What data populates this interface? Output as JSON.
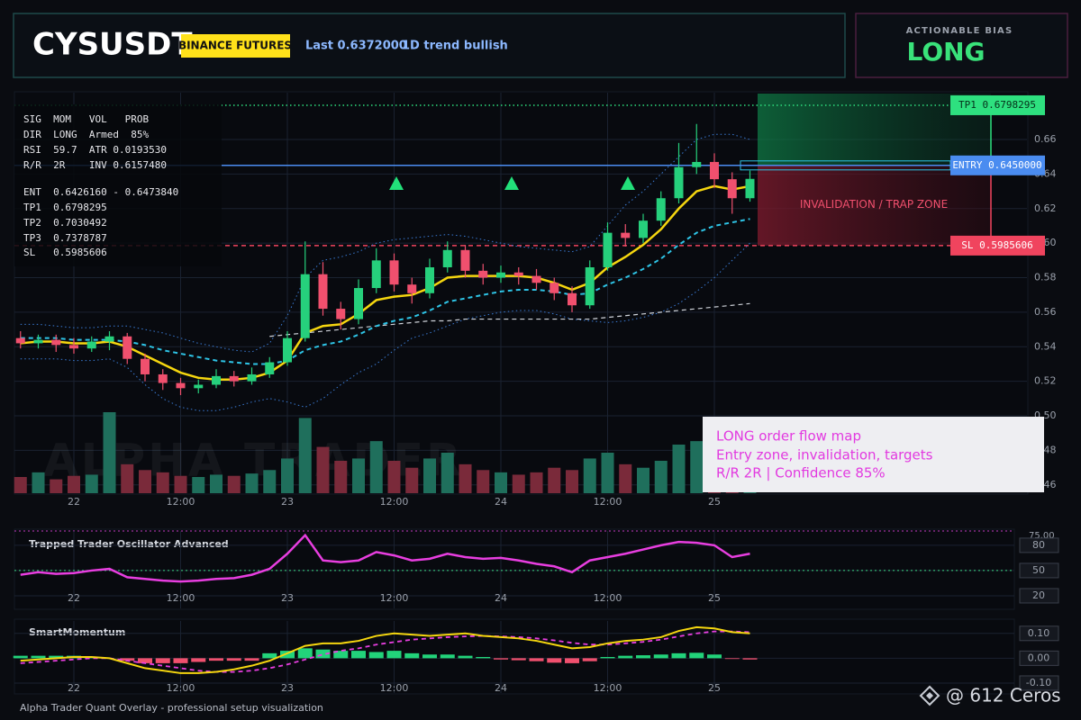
{
  "header": {
    "symbol": "CYSUSDT",
    "exchange": "BINANCE FUTURES",
    "last": "Last 0.6372000",
    "trend": "1D trend bullish"
  },
  "bias": {
    "label": "ACTIONABLE BIAS",
    "value": "LONG"
  },
  "info_table": [
    "SIG  MOM   VOL   PROB",
    "DIR  LONG  Armed  85%",
    "RSI  59.7  ATR 0.0193530",
    "R/R  2R    INV 0.6157480",
    "ENT  0.6426160 - 0.6473840",
    "TP1  0.6798295",
    "TP2  0.7030492",
    "TP3  0.7378787",
    "SL   0.5985606"
  ],
  "zone_label": "INVALIDATION / TRAP ZONE",
  "note": [
    "LONG order flow map",
    "Entry zone, invalidation, targets",
    "R/R 2R | Confidence 85%"
  ],
  "watermark": "ALPHA TRADER",
  "footer": "Alpha Trader Quant Overlay - professional setup visualization",
  "credit": "@ 612 Ceros",
  "chart_data": [
    {
      "type": "candlestick",
      "categories": [
        null,
        null,
        null,
        "22",
        null,
        null,
        null,
        null,
        null,
        "12:00",
        null,
        null,
        null,
        null,
        null,
        "23",
        null,
        null,
        null,
        null,
        null,
        "12:00",
        null,
        null,
        null,
        null,
        null,
        "24",
        null,
        null,
        null,
        null,
        null,
        "12:00",
        null,
        null,
        null,
        null,
        null,
        "25",
        null,
        null
      ],
      "open": [
        0.545,
        0.542,
        0.544,
        0.541,
        0.539,
        0.543,
        0.546,
        0.533,
        0.524,
        0.519,
        0.516,
        0.518,
        0.523,
        0.52,
        0.524,
        0.531,
        0.545,
        0.582,
        0.562,
        0.556,
        0.574,
        0.59,
        0.576,
        0.571,
        0.586,
        0.596,
        0.584,
        0.58,
        0.583,
        0.581,
        0.577,
        0.571,
        0.564,
        0.586,
        0.606,
        0.603,
        0.613,
        0.626,
        0.644,
        0.647,
        0.637,
        0.626
      ],
      "high": [
        0.549,
        0.547,
        0.547,
        0.545,
        0.546,
        0.549,
        0.548,
        0.536,
        0.527,
        0.522,
        0.521,
        0.527,
        0.526,
        0.528,
        0.534,
        0.549,
        0.601,
        0.589,
        0.566,
        0.579,
        0.597,
        0.594,
        0.58,
        0.591,
        0.601,
        0.599,
        0.588,
        0.587,
        0.586,
        0.585,
        0.58,
        0.575,
        0.59,
        0.612,
        0.611,
        0.617,
        0.63,
        0.658,
        0.669,
        0.652,
        0.641,
        0.642
      ],
      "low": [
        0.539,
        0.539,
        0.537,
        0.536,
        0.537,
        0.538,
        0.53,
        0.52,
        0.515,
        0.512,
        0.513,
        0.516,
        0.517,
        0.518,
        0.522,
        0.529,
        0.543,
        0.558,
        0.55,
        0.553,
        0.571,
        0.572,
        0.565,
        0.568,
        0.583,
        0.58,
        0.576,
        0.577,
        0.576,
        0.573,
        0.567,
        0.56,
        0.562,
        0.584,
        0.598,
        0.6,
        0.61,
        0.623,
        0.64,
        0.632,
        0.617,
        0.624
      ],
      "close": [
        0.542,
        0.544,
        0.541,
        0.539,
        0.543,
        0.546,
        0.533,
        0.524,
        0.519,
        0.516,
        0.518,
        0.523,
        0.52,
        0.524,
        0.531,
        0.545,
        0.582,
        0.562,
        0.556,
        0.574,
        0.59,
        0.576,
        0.571,
        0.586,
        0.596,
        0.584,
        0.58,
        0.583,
        0.581,
        0.577,
        0.571,
        0.564,
        0.586,
        0.606,
        0.603,
        0.613,
        0.626,
        0.644,
        0.647,
        0.637,
        0.626,
        0.6372
      ],
      "volume": [
        14,
        18,
        12,
        15,
        16,
        70,
        25,
        20,
        18,
        15,
        14,
        16,
        15,
        17,
        20,
        30,
        65,
        40,
        28,
        30,
        45,
        28,
        22,
        30,
        35,
        25,
        20,
        18,
        16,
        18,
        22,
        20,
        30,
        35,
        25,
        22,
        28,
        42,
        45,
        35,
        30,
        20
      ],
      "up_color": "#26d07c",
      "down_color": "#f0506e",
      "volume_up_color": "#1f6f5c",
      "volume_down_color": "#7a2a3a",
      "series": [
        {
          "color": "#3a7bd5",
          "dash": "dotted",
          "width": 1,
          "values": [
            0.553,
            0.553,
            0.552,
            0.551,
            0.551,
            0.552,
            0.552,
            0.55,
            0.548,
            0.545,
            0.542,
            0.54,
            0.538,
            0.537,
            0.542,
            0.558,
            0.58,
            0.59,
            0.592,
            0.595,
            0.6,
            0.602,
            0.603,
            0.604,
            0.605,
            0.604,
            0.602,
            0.6,
            0.598,
            0.597,
            0.596,
            0.595,
            0.598,
            0.61,
            0.622,
            0.63,
            0.64,
            0.65,
            0.66,
            0.663,
            0.663,
            0.66
          ]
        },
        {
          "color": "#3a7bd5",
          "dash": "dotted",
          "width": 1,
          "values": [
            0.533,
            0.533,
            0.533,
            0.532,
            0.532,
            0.533,
            0.528,
            0.518,
            0.51,
            0.505,
            0.503,
            0.503,
            0.505,
            0.508,
            0.51,
            0.508,
            0.505,
            0.51,
            0.518,
            0.525,
            0.53,
            0.538,
            0.545,
            0.548,
            0.552,
            0.556,
            0.558,
            0.56,
            0.561,
            0.561,
            0.559,
            0.556,
            0.555,
            0.554,
            0.555,
            0.557,
            0.56,
            0.565,
            0.572,
            0.58,
            0.59,
            0.6
          ]
        },
        {
          "color": "#cfd3da",
          "dash": "dashed",
          "width": 1.2,
          "values": [
            null,
            null,
            null,
            null,
            null,
            null,
            null,
            null,
            null,
            null,
            null,
            null,
            null,
            null,
            0.546,
            0.547,
            0.548,
            0.549,
            0.55,
            0.551,
            0.552,
            0.553,
            0.554,
            0.555,
            0.555,
            0.556,
            0.556,
            0.556,
            0.556,
            0.556,
            0.556,
            0.556,
            0.556,
            0.557,
            0.558,
            0.559,
            0.56,
            0.561,
            0.562,
            0.563,
            0.564,
            0.565
          ]
        },
        {
          "color": "#2ec4e6",
          "dash": "dashed",
          "width": 2,
          "values": [
            0.545,
            0.545,
            0.545,
            0.544,
            0.544,
            0.544,
            0.543,
            0.541,
            0.538,
            0.536,
            0.534,
            0.532,
            0.531,
            0.53,
            0.53,
            0.532,
            0.538,
            0.541,
            0.543,
            0.547,
            0.552,
            0.555,
            0.557,
            0.561,
            0.566,
            0.568,
            0.57,
            0.572,
            0.573,
            0.573,
            0.572,
            0.57,
            0.571,
            0.576,
            0.58,
            0.585,
            0.591,
            0.599,
            0.606,
            0.61,
            0.612,
            0.614
          ]
        },
        {
          "color": "#f5d60f",
          "dash": "solid",
          "width": 2.5,
          "values": [
            0.542,
            0.543,
            0.543,
            0.542,
            0.542,
            0.543,
            0.54,
            0.535,
            0.53,
            0.525,
            0.522,
            0.521,
            0.521,
            0.522,
            0.525,
            0.532,
            0.548,
            0.552,
            0.553,
            0.559,
            0.567,
            0.569,
            0.57,
            0.574,
            0.58,
            0.581,
            0.581,
            0.581,
            0.581,
            0.58,
            0.577,
            0.573,
            0.577,
            0.586,
            0.592,
            0.599,
            0.608,
            0.62,
            0.63,
            0.633,
            0.631,
            0.633
          ]
        }
      ],
      "levels": [
        {
          "label": "TP1 0.6798295",
          "value": 0.6798295,
          "color": "#2ee07f",
          "dash": "dotted"
        },
        {
          "label": "ENTRY 0.6450000",
          "value": 0.645,
          "color": "#4a8cf0",
          "dash": "solid"
        },
        {
          "label": "SL 0.5985606",
          "value": 0.5985606,
          "color": "#f0445e",
          "dash": "dashed"
        }
      ],
      "ylim": [
        0.4552,
        0.6871
      ],
      "yticks": [
        {
          "value": 0.46,
          "label": "0.46"
        },
        {
          "value": 0.48,
          "label": "0.48"
        },
        {
          "value": 0.5,
          "label": "0.50"
        },
        0.52,
        0.54,
        0.56,
        0.58,
        {
          "value": 0.6,
          "label": "0.60"
        },
        0.62,
        0.64,
        0.66
      ],
      "grid": true
    },
    {
      "type": "line",
      "title": "Trapped Trader Oscillator Advanced",
      "top_label": "75.00",
      "categories": [
        null,
        null,
        null,
        "22",
        null,
        null,
        null,
        null,
        null,
        "12:00",
        null,
        null,
        null,
        null,
        null,
        "23",
        null,
        null,
        null,
        null,
        null,
        "12:00",
        null,
        null,
        null,
        null,
        null,
        "24",
        null,
        null,
        null,
        null,
        null,
        "12:00",
        null,
        null,
        null,
        null,
        null,
        "25",
        null,
        null
      ],
      "series": [
        {
          "color": "#e83ee0",
          "values": [
            45,
            48,
            46,
            47,
            50,
            52,
            42,
            40,
            38,
            37,
            38,
            40,
            41,
            45,
            52,
            70,
            92,
            62,
            60,
            62,
            72,
            68,
            62,
            64,
            70,
            66,
            64,
            65,
            62,
            58,
            55,
            48,
            62,
            66,
            70,
            75,
            80,
            84,
            83,
            80,
            66,
            70
          ]
        }
      ],
      "levels": [
        {
          "value": 50,
          "color": "#3ddc84"
        }
      ],
      "ylim": [
        5,
        97
      ],
      "yticks": [
        20,
        50,
        80
      ],
      "grid": true
    },
    {
      "type": "macd",
      "title": "SmartMomentum",
      "categories": [
        null,
        null,
        null,
        "22",
        null,
        null,
        null,
        null,
        null,
        "12:00",
        null,
        null,
        null,
        null,
        null,
        "23",
        null,
        null,
        null,
        null,
        null,
        "12:00",
        null,
        null,
        null,
        null,
        null,
        "24",
        null,
        null,
        null,
        null,
        null,
        "12:00",
        null,
        null,
        null,
        null,
        null,
        "25",
        null,
        null
      ],
      "histogram": {
        "up_color": "#22d37a",
        "down_color": "#f0506e",
        "values": [
          0.01,
          0.01,
          0.01,
          0.01,
          0.005,
          0,
          -0.01,
          -0.02,
          -0.02,
          -0.02,
          -0.015,
          -0.01,
          -0.01,
          -0.01,
          0.02,
          0.03,
          0.04,
          0.035,
          0.03,
          0.03,
          0.025,
          0.03,
          0.02,
          0.015,
          0.015,
          0.01,
          0.005,
          -0.005,
          -0.008,
          -0.012,
          -0.018,
          -0.02,
          -0.012,
          0.005,
          0.01,
          0.012,
          0.015,
          0.02,
          0.022,
          0.015,
          -0.003,
          -0.005
        ]
      },
      "series": [
        {
          "color": "#e83ee0",
          "dash": "dashed",
          "width": 1.8,
          "values": [
            -0.02,
            -0.015,
            -0.01,
            -0.005,
            0,
            0,
            -0.01,
            -0.02,
            -0.03,
            -0.04,
            -0.05,
            -0.055,
            -0.055,
            -0.05,
            -0.04,
            -0.025,
            -0.005,
            0.015,
            0.03,
            0.04,
            0.055,
            0.065,
            0.075,
            0.08,
            0.085,
            0.088,
            0.09,
            0.088,
            0.085,
            0.08,
            0.072,
            0.062,
            0.055,
            0.055,
            0.06,
            0.066,
            0.075,
            0.088,
            0.1,
            0.108,
            0.108,
            0.105
          ]
        },
        {
          "color": "#f5d60f",
          "dash": "solid",
          "width": 2,
          "values": [
            -0.01,
            -0.005,
            0,
            0.005,
            0.005,
            0,
            -0.02,
            -0.04,
            -0.05,
            -0.06,
            -0.06,
            -0.055,
            -0.045,
            -0.03,
            -0.01,
            0.02,
            0.05,
            0.06,
            0.06,
            0.07,
            0.09,
            0.1,
            0.095,
            0.09,
            0.095,
            0.1,
            0.09,
            0.085,
            0.08,
            0.07,
            0.055,
            0.04,
            0.045,
            0.06,
            0.07,
            0.075,
            0.085,
            0.11,
            0.125,
            0.12,
            0.105,
            0.1
          ]
        }
      ],
      "ylim": [
        -0.14,
        0.15
      ],
      "yticks": [
        {
          "value": -0.1,
          "label": "-0.10"
        },
        {
          "value": 0,
          "label": "0.00"
        },
        {
          "value": 0.1,
          "label": "0.10"
        }
      ],
      "grid": true
    }
  ]
}
